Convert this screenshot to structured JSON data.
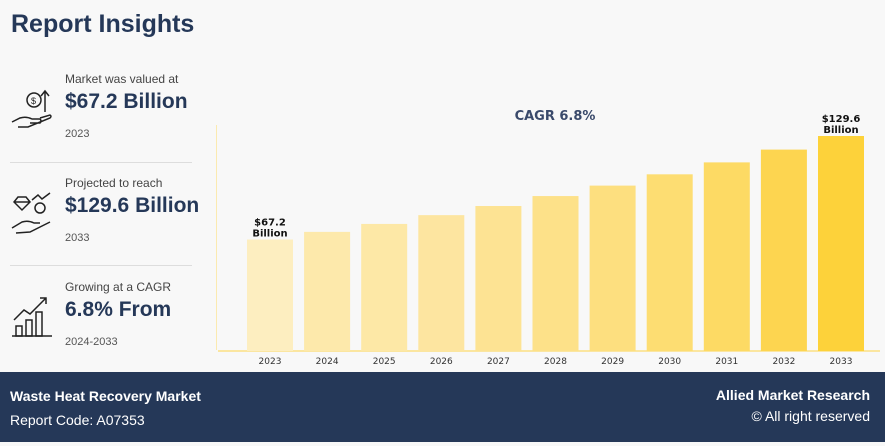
{
  "title": "Report Insights",
  "stats": [
    {
      "label": "Market was valued at",
      "value": "$67.2 Billion",
      "sub": "2023",
      "icon": "hand-money-growth-icon"
    },
    {
      "label": "Projected to reach",
      "value": "$129.6 Billion",
      "sub": "2033",
      "icon": "hand-diamond-coin-icon"
    },
    {
      "label": "Growing at a CAGR",
      "value": "6.8% From",
      "sub": "2024-2033",
      "icon": "bar-growth-chart-icon"
    }
  ],
  "chart_data": {
    "type": "bar",
    "title": "CAGR 6.8%",
    "categories": [
      "2023",
      "2024",
      "2025",
      "2026",
      "2027",
      "2028",
      "2029",
      "2030",
      "2031",
      "2032",
      "2033"
    ],
    "values": [
      67.2,
      71.8,
      76.6,
      81.9,
      87.4,
      93.4,
      99.7,
      106.5,
      113.7,
      121.4,
      129.6
    ],
    "data_labels": {
      "0": [
        "$67.2",
        "Billion"
      ],
      "10": [
        "$129.6",
        "Billion"
      ]
    },
    "xlabel": "",
    "ylabel": "",
    "ylim": [
      0,
      140
    ],
    "grid": false,
    "colors": [
      "#fdeec0",
      "#fde9ab",
      "#fde8a6",
      "#fde5a0",
      "#fde393",
      "#fde189",
      "#fddf7f",
      "#fddd72",
      "#fdda64",
      "#fdd550",
      "#fdd23a"
    ]
  },
  "footer": {
    "market": "Waste Heat Recovery Market",
    "code": "Report Code: A07353",
    "brand": "Allied Market Research",
    "rights": "© All right reserved"
  }
}
